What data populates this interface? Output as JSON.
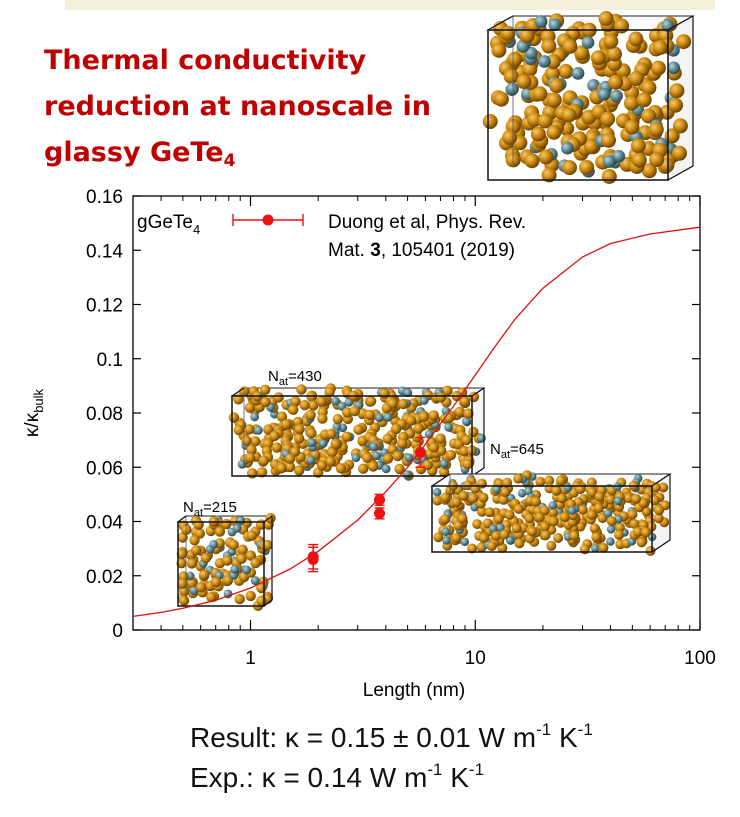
{
  "title": {
    "line1": "Thermal conductivity",
    "line2": "reduction at nanoscale in",
    "line3_main": "glassy GeTe",
    "line3_sub": "4"
  },
  "chart_data": {
    "type": "scatter",
    "x_scale": "log",
    "xlim": [
      0.3,
      100
    ],
    "ylim": [
      0,
      0.16
    ],
    "xlabel": "Length (nm)",
    "ylabel": "κ/κ",
    "ylabel_sub": "bulk",
    "x_ticks": [
      1,
      10,
      100
    ],
    "x_tick_labels": [
      "1",
      "10",
      "100"
    ],
    "y_ticks": [
      0,
      0.02,
      0.04,
      0.06,
      0.08,
      0.1,
      0.12,
      0.14,
      0.16
    ],
    "y_tick_labels": [
      "0",
      "0.02",
      "0.04",
      "0.06",
      "0.08",
      "0.1",
      "0.12",
      "0.14",
      "0.16"
    ],
    "legend": {
      "label": "gGeTe",
      "label_sub": "4",
      "position": "top-left",
      "ref_line1": "Duong et al, Phys. Rev.",
      "ref_line2_pre": "Mat. ",
      "ref_line2_bold": "3",
      "ref_line2_post": ", 105401 (2019)"
    },
    "series": [
      {
        "type": "scatter",
        "color": "#ee1111",
        "x": [
          1.9,
          1.9,
          3.75,
          3.75,
          5.7
        ],
        "y": [
          0.026,
          0.027,
          0.043,
          0.048,
          0.0655
        ],
        "yerr": [
          0.0045,
          0.0045,
          0.002,
          0.002,
          0.0055
        ]
      },
      {
        "type": "line",
        "color": "#dd1111",
        "x": [
          0.3,
          0.4,
          0.5,
          0.7,
          1,
          1.5,
          2,
          3,
          4,
          5,
          6,
          7,
          8,
          10,
          12,
          15,
          20,
          30,
          40,
          60,
          100
        ],
        "y": [
          0.005,
          0.0065,
          0.008,
          0.011,
          0.0155,
          0.0225,
          0.029,
          0.0405,
          0.051,
          0.06,
          0.0685,
          0.076,
          0.0825,
          0.094,
          0.1035,
          0.1145,
          0.126,
          0.1375,
          0.1425,
          0.146,
          0.1485
        ]
      }
    ],
    "annotations": [
      {
        "label": "N",
        "sub": "at",
        "value": "=215"
      },
      {
        "label": "N",
        "sub": "at",
        "value": "=430"
      },
      {
        "label": "N",
        "sub": "at",
        "value": "=645"
      }
    ]
  },
  "result": {
    "line1": {
      "pre": "Result:  κ = 0.15 ± 0.01 W m",
      "exp1": "-1",
      "mid": " K",
      "exp2": "-1"
    },
    "line2": {
      "pre": "Exp.: κ = 0.14 W m",
      "exp1": "-1",
      "mid": " K",
      "exp2": "-1"
    }
  },
  "colors": {
    "title": "#c00000",
    "atom_gold": "#c8860c",
    "atom_grey": "#5e8a94",
    "data_red": "#ee1111"
  },
  "icons": [
    "atomic-structure-box-icon",
    "atomic-structure-slab-icon"
  ]
}
